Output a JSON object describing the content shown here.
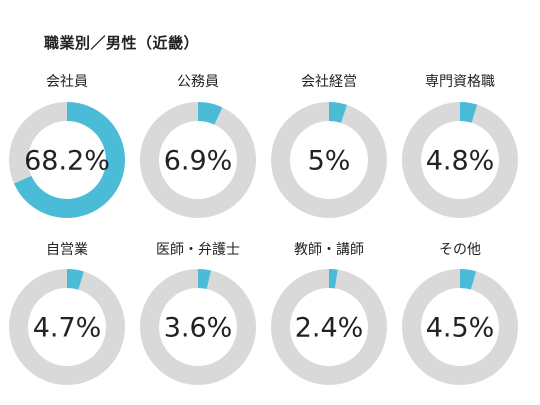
{
  "title": "職業別／男性（近畿）",
  "colors": {
    "filled": "#4bbcd8",
    "remainder": "#d9d9d9"
  },
  "chart_data": {
    "type": "pie",
    "title": "職業別／男性（近畿）",
    "style": "donut",
    "slices": [
      {
        "category": "会社員",
        "value": 68.2,
        "label": "68.2%"
      },
      {
        "category": "公務員",
        "value": 6.9,
        "label": "6.9%"
      },
      {
        "category": "会社経営",
        "value": 5,
        "label": "5%"
      },
      {
        "category": "専門資格職",
        "value": 4.8,
        "label": "4.8%"
      },
      {
        "category": "自営業",
        "value": 4.7,
        "label": "4.7%"
      },
      {
        "category": "医師・弁護士",
        "value": 3.6,
        "label": "3.6%"
      },
      {
        "category": "教師・講師",
        "value": 2.4,
        "label": "2.4%"
      },
      {
        "category": "その他",
        "value": 4.5,
        "label": "4.5%"
      }
    ]
  }
}
